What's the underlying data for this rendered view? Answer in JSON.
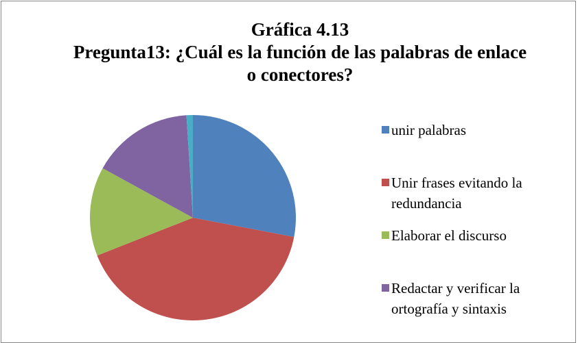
{
  "chart_data": {
    "type": "pie",
    "title": "Gráfica 4.13",
    "subtitle": "Pregunta13: ¿Cuál es la función de las palabras de enlace o conectores?",
    "categories": [
      "unir palabras",
      "Unir frases evitando la redundancia",
      "Elaborar el discurso",
      "Redactar y verificar la ortografía y sintaxis",
      null
    ],
    "values": [
      28,
      41,
      14,
      16,
      1
    ],
    "colors": [
      "#4f81bd",
      "#c0504d",
      "#9bbb59",
      "#8064a2",
      "#4bacc6"
    ],
    "legend": "right"
  }
}
